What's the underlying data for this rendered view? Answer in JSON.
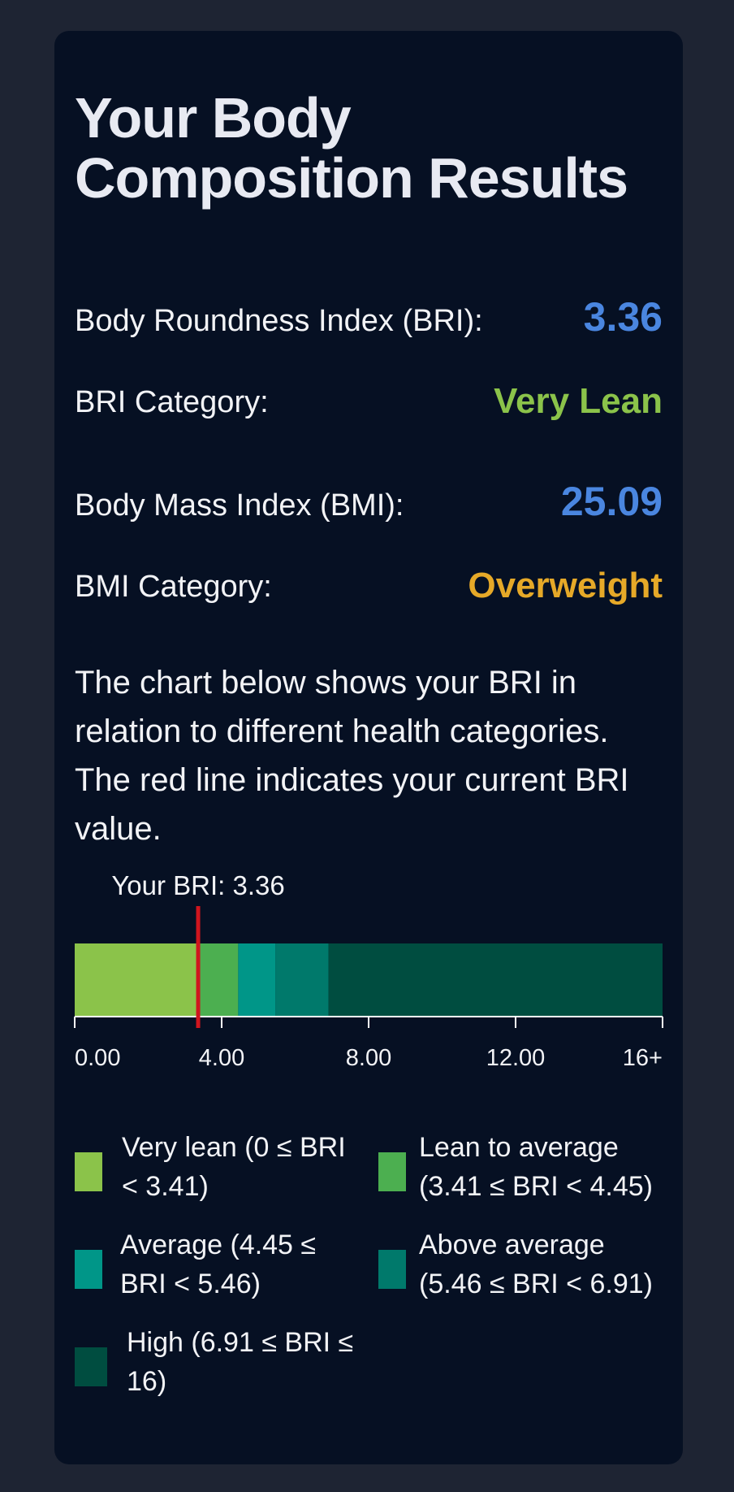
{
  "page": {
    "title": "Your Body Composition Results",
    "description": "The chart below shows your BRI in relation to different health categories. The red line indicates your current BRI value."
  },
  "metrics": {
    "bri_label": "Body Roundness Index (BRI):",
    "bri_value": "3.36",
    "bri_category_label": "BRI Category:",
    "bri_category_value": "Very Lean",
    "bmi_label": "Body Mass Index (BMI):",
    "bmi_value": "25.09",
    "bmi_category_label": "BMI Category:",
    "bmi_category_value": "Overweight"
  },
  "colors": {
    "value_blue": "#4a86e0",
    "very_lean_green": "#8bc34a",
    "overweight_amber": "#e6a928",
    "marker_red": "#d0151e"
  },
  "chart_data": {
    "type": "bar",
    "marker_label": "Your BRI: 3.36",
    "marker_value": 3.36,
    "xlim": [
      0,
      16
    ],
    "ticks": [
      {
        "value": 0,
        "label": "0.00"
      },
      {
        "value": 4,
        "label": "4.00"
      },
      {
        "value": 8,
        "label": "8.00"
      },
      {
        "value": 12,
        "label": "12.00"
      },
      {
        "value": 16,
        "label": "16+"
      }
    ],
    "segments": [
      {
        "start": 0,
        "end": 3.41,
        "color": "#8bc34a"
      },
      {
        "start": 3.41,
        "end": 4.45,
        "color": "#4caf50"
      },
      {
        "start": 4.45,
        "end": 5.46,
        "color": "#009688"
      },
      {
        "start": 5.46,
        "end": 6.91,
        "color": "#00796b"
      },
      {
        "start": 6.91,
        "end": 16,
        "color": "#004d40"
      }
    ]
  },
  "legend": [
    {
      "line1": "Very lean (0 ≤ BRI",
      "line2": "< 3.41)",
      "color": "#8bc34a"
    },
    {
      "line1": "Lean to average",
      "line2": "(3.41 ≤ BRI < 4.45)",
      "color": "#4caf50"
    },
    {
      "line1": "Average (4.45 ≤",
      "line2": "BRI < 5.46)",
      "color": "#009688"
    },
    {
      "line1": "Above average",
      "line2": "(5.46 ≤ BRI < 6.91)",
      "color": "#00796b"
    },
    {
      "line1": "High (6.91 ≤ BRI ≤",
      "line2": "16)",
      "color": "#004d40"
    }
  ]
}
